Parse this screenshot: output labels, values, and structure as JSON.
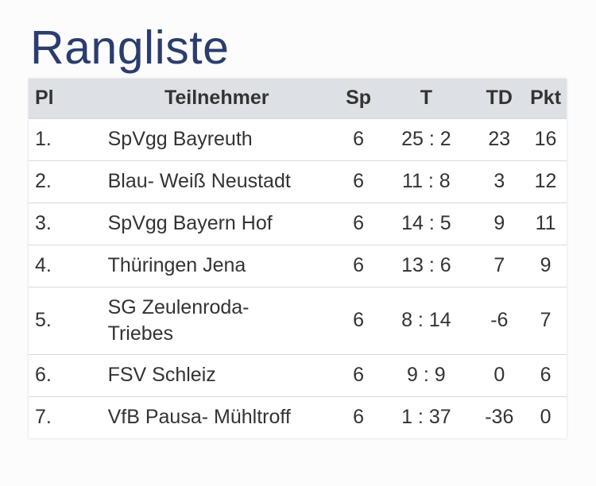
{
  "title": "Rangliste",
  "table": {
    "headers": {
      "pl": "Pl",
      "team": "Teilnehmer",
      "sp": "Sp",
      "t": "T",
      "td": "TD",
      "pkt": "Pkt"
    },
    "rows": [
      {
        "pl": "1.",
        "team": "SpVgg Bayreuth",
        "sp": "6",
        "t": "25 : 2",
        "td": "23",
        "pkt": "16"
      },
      {
        "pl": "2.",
        "team": "Blau- Weiß Neustadt",
        "sp": "6",
        "t": "11 : 8",
        "td": "3",
        "pkt": "12"
      },
      {
        "pl": "3.",
        "team": "SpVgg Bayern Hof",
        "sp": "6",
        "t": "14 : 5",
        "td": "9",
        "pkt": "11"
      },
      {
        "pl": "4.",
        "team": "Thüringen Jena",
        "sp": "6",
        "t": "13 : 6",
        "td": "7",
        "pkt": "9"
      },
      {
        "pl": "5.",
        "team": "SG Zeulenroda- Triebes",
        "sp": "6",
        "t": "8 : 14",
        "td": "-6",
        "pkt": "7"
      },
      {
        "pl": "6.",
        "team": "FSV Schleiz",
        "sp": "6",
        "t": "9 : 9",
        "td": "0",
        "pkt": "6"
      },
      {
        "pl": "7.",
        "team": "VfB Pausa- Mühltroff",
        "sp": "6",
        "t": "1 : 37",
        "td": "-36",
        "pkt": "0"
      }
    ]
  },
  "colors": {
    "title": "#2b3d6e",
    "header_bg": "#dde0e5",
    "text": "#333333"
  }
}
